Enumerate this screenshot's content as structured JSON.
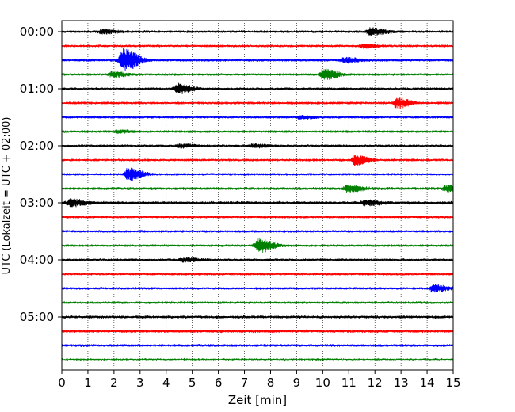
{
  "chart_data": {
    "type": "line",
    "title": "",
    "xlabel": "Zeit  [min]",
    "ylabel": "UTC (Lokalzeit = UTC + 02:00)",
    "xlim": [
      0,
      15
    ],
    "xticks": [
      "0",
      "1",
      "2",
      "3",
      "4",
      "5",
      "6",
      "7",
      "8",
      "9",
      "10",
      "11",
      "12",
      "13",
      "14",
      "15"
    ],
    "yticks": [
      "00:00",
      "01:00",
      "02:00",
      "03:00",
      "04:00",
      "05:00"
    ],
    "grid": "vertical dotted",
    "trace_colors": [
      "#000000",
      "#ff0000",
      "#0000ff",
      "#008000"
    ],
    "traces": [
      {
        "start": "00:00",
        "color": "#000000",
        "noise": 1.4,
        "events": [
          {
            "t": 1.6,
            "amp": 2.5
          },
          {
            "t": 11.9,
            "amp": 4.5
          }
        ]
      },
      {
        "start": "00:15",
        "color": "#ff0000",
        "noise": 1.2,
        "events": [
          {
            "t": 11.6,
            "amp": 2.5
          }
        ]
      },
      {
        "start": "00:30",
        "color": "#0000ff",
        "noise": 1.5,
        "events": [
          {
            "t": 2.4,
            "amp": 14
          },
          {
            "t": 10.9,
            "amp": 2.5
          }
        ]
      },
      {
        "start": "00:45",
        "color": "#008000",
        "noise": 1.3,
        "events": [
          {
            "t": 2.0,
            "amp": 3
          },
          {
            "t": 10.1,
            "amp": 6
          }
        ]
      },
      {
        "start": "01:00",
        "color": "#000000",
        "noise": 1.2,
        "events": [
          {
            "t": 4.5,
            "amp": 6
          }
        ]
      },
      {
        "start": "01:15",
        "color": "#ff0000",
        "noise": 1.0,
        "events": [
          {
            "t": 12.9,
            "amp": 6
          }
        ]
      },
      {
        "start": "01:30",
        "color": "#0000ff",
        "noise": 1.1,
        "events": [
          {
            "t": 9.2,
            "amp": 2
          }
        ]
      },
      {
        "start": "01:45",
        "color": "#008000",
        "noise": 1.1,
        "events": [
          {
            "t": 2.2,
            "amp": 2
          }
        ]
      },
      {
        "start": "02:00",
        "color": "#000000",
        "noise": 1.3,
        "events": [
          {
            "t": 4.6,
            "amp": 2
          },
          {
            "t": 7.4,
            "amp": 2
          }
        ]
      },
      {
        "start": "02:15",
        "color": "#ff0000",
        "noise": 1.1,
        "events": [
          {
            "t": 11.3,
            "amp": 6
          }
        ]
      },
      {
        "start": "02:30",
        "color": "#0000ff",
        "noise": 1.2,
        "events": [
          {
            "t": 2.6,
            "amp": 7
          }
        ]
      },
      {
        "start": "02:45",
        "color": "#008000",
        "noise": 1.6,
        "events": [
          {
            "t": 11.0,
            "amp": 4
          },
          {
            "t": 14.8,
            "amp": 3.5
          }
        ]
      },
      {
        "start": "03:00",
        "color": "#000000",
        "noise": 1.7,
        "events": [
          {
            "t": 0.4,
            "amp": 4
          },
          {
            "t": 11.7,
            "amp": 3
          }
        ]
      },
      {
        "start": "03:15",
        "color": "#ff0000",
        "noise": 1.4,
        "events": []
      },
      {
        "start": "03:30",
        "color": "#0000ff",
        "noise": 1.2,
        "events": []
      },
      {
        "start": "03:45",
        "color": "#008000",
        "noise": 1.3,
        "events": [
          {
            "t": 7.6,
            "amp": 8
          }
        ]
      },
      {
        "start": "04:00",
        "color": "#000000",
        "noise": 1.4,
        "events": [
          {
            "t": 4.7,
            "amp": 2.5
          }
        ]
      },
      {
        "start": "04:15",
        "color": "#ff0000",
        "noise": 1.2,
        "events": []
      },
      {
        "start": "04:30",
        "color": "#0000ff",
        "noise": 1.3,
        "events": [
          {
            "t": 14.3,
            "amp": 4
          }
        ]
      },
      {
        "start": "04:45",
        "color": "#008000",
        "noise": 1.4,
        "events": []
      },
      {
        "start": "05:00",
        "color": "#000000",
        "noise": 1.6,
        "events": []
      },
      {
        "start": "05:15",
        "color": "#ff0000",
        "noise": 1.7,
        "events": []
      },
      {
        "start": "05:30",
        "color": "#0000ff",
        "noise": 1.5,
        "events": []
      },
      {
        "start": "05:45",
        "color": "#008000",
        "noise": 1.6,
        "events": []
      }
    ]
  }
}
